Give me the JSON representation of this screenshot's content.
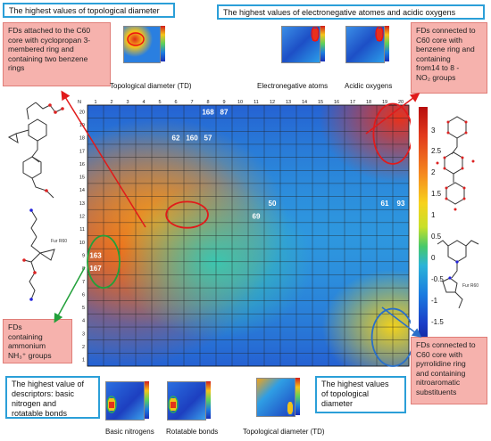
{
  "panels": {
    "top_left_title": "The highest values of topological diameter",
    "top_right_title": "The highest values of electronegative atomes and acidic oxygens",
    "bottom_left_title_line1": "The highest value of",
    "bottom_left_title_line2": "descriptors: basic nitrogen and",
    "bottom_left_title_line3": "rotatable bonds",
    "bottom_right_title_line1": "The highest values",
    "bottom_right_title_line2": "of topological",
    "bottom_right_title_line3": "diameter"
  },
  "callouts": {
    "left_top": [
      "FDs attached to the C60",
      "core with cyclopropan 3-",
      "membered ring and",
      "containing two benzene",
      "rings"
    ],
    "right_top": [
      "FDs connected to",
      "C60 core with",
      "benzene ring and",
      "containing",
      "from14 to 8 -",
      "NO₂ groups"
    ],
    "left_bottom": [
      "FDs",
      "containing",
      "ammonium",
      "NH₃⁺ groups"
    ],
    "right_bottom": [
      "FDs connected to",
      "C60 core with",
      "pyrrolidine ring",
      "and containing",
      "nitroaromatic",
      "substituents"
    ]
  },
  "captions": {
    "top_td": "Topological diameter (TD)",
    "electronegative": "Electronegative atoms",
    "acidic": "Acidic oxygens",
    "basic_nitrogens": "Basic nitrogens",
    "rotatable": "Rotatable bonds",
    "bottom_td": "Topological diameter (TD)"
  },
  "colorbar": {
    "ticks": [
      "3",
      "2.5",
      "2",
      "1.5",
      "1",
      "0.5",
      "0",
      "-0.5",
      "-1",
      "-1.5"
    ]
  },
  "map": {
    "corner": "N",
    "columns": [
      "1",
      "2",
      "3",
      "4",
      "5",
      "6",
      "7",
      "8",
      "9",
      "10",
      "11",
      "12",
      "13",
      "14",
      "15",
      "16",
      "17",
      "18",
      "19",
      "20"
    ],
    "rows": [
      "20",
      "19",
      "18",
      "17",
      "16",
      "15",
      "14",
      "13",
      "12",
      "11",
      "10",
      "9",
      "8",
      "7",
      "6",
      "5",
      "4",
      "3",
      "2",
      "1"
    ],
    "highlight_labels": [
      {
        "text": "168",
        "row": "20",
        "col": "8"
      },
      {
        "text": "87",
        "row": "20",
        "col": "9"
      },
      {
        "text": "62",
        "row": "18",
        "col": "6"
      },
      {
        "text": "160",
        "row": "18",
        "col": "7"
      },
      {
        "text": "57",
        "row": "18",
        "col": "8"
      },
      {
        "text": "50",
        "row": "13",
        "col": "12"
      },
      {
        "text": "69",
        "row": "12",
        "col": "11"
      },
      {
        "text": "61",
        "row": "13",
        "col": "19"
      },
      {
        "text": "93",
        "row": "13",
        "col": "20"
      },
      {
        "text": "163",
        "row": "9",
        "col": "1"
      },
      {
        "text": "167",
        "row": "8",
        "col": "1"
      }
    ]
  },
  "molecule_labels": {
    "fur_a": "Fur R60",
    "fur_b": "Fur R60"
  }
}
